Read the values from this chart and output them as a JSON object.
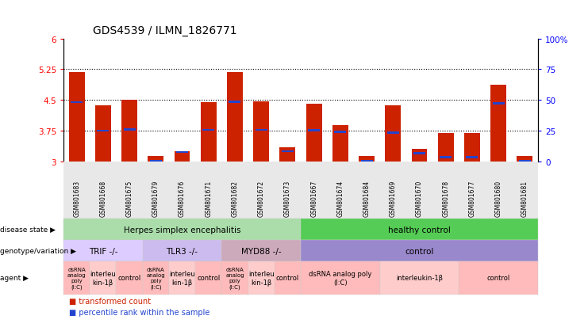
{
  "title": "GDS4539 / ILMN_1826771",
  "samples": [
    "GSM801683",
    "GSM801668",
    "GSM801675",
    "GSM801679",
    "GSM801676",
    "GSM801671",
    "GSM801682",
    "GSM801672",
    "GSM801673",
    "GSM801667",
    "GSM801674",
    "GSM801684",
    "GSM801669",
    "GSM801670",
    "GSM801678",
    "GSM801677",
    "GSM801680",
    "GSM801681"
  ],
  "bar_values": [
    5.18,
    4.38,
    4.5,
    3.13,
    3.25,
    4.44,
    5.18,
    4.47,
    3.35,
    4.4,
    3.88,
    3.13,
    4.38,
    3.3,
    3.7,
    3.7,
    4.88,
    3.13
  ],
  "blue_values": [
    4.45,
    3.75,
    3.78,
    3.02,
    3.23,
    3.77,
    4.46,
    3.77,
    3.25,
    3.76,
    3.72,
    3.02,
    3.7,
    3.2,
    3.1,
    3.1,
    4.42,
    3.02
  ],
  "ylim_left": [
    3.0,
    6.0
  ],
  "yticks_left": [
    3.0,
    3.75,
    4.5,
    5.25,
    6.0
  ],
  "ytick_labels_left": [
    "3",
    "3.75",
    "4.5",
    "5.25",
    "6"
  ],
  "yticks_right": [
    0,
    25,
    50,
    75,
    100
  ],
  "ytick_labels_right": [
    "0",
    "25",
    "50",
    "75",
    "100%"
  ],
  "hlines": [
    3.75,
    4.5,
    5.25
  ],
  "bar_color": "#cc2200",
  "blue_color": "#2244cc",
  "bar_width": 0.6,
  "disease_state_regions": [
    {
      "label": "Herpes simplex encephalitis",
      "start": 0,
      "end": 9,
      "color": "#aaddaa"
    },
    {
      "label": "healthy control",
      "start": 9,
      "end": 18,
      "color": "#55cc55"
    }
  ],
  "genotype_regions": [
    {
      "label": "TRIF -/-",
      "start": 0,
      "end": 3,
      "color": "#ddccff"
    },
    {
      "label": "TLR3 -/-",
      "start": 3,
      "end": 6,
      "color": "#ccbbee"
    },
    {
      "label": "MYD88 -/-",
      "start": 6,
      "end": 9,
      "color": "#ccaabb"
    },
    {
      "label": "control",
      "start": 9,
      "end": 18,
      "color": "#9988cc"
    }
  ],
  "agent_regions": [
    {
      "label": "dsRNA\nanalog\npoly\n(I:C)",
      "start": 0,
      "end": 1,
      "color": "#ffbbbb"
    },
    {
      "label": "interleu\nkin-1β",
      "start": 1,
      "end": 2,
      "color": "#ffcccc"
    },
    {
      "label": "control",
      "start": 2,
      "end": 3,
      "color": "#ffbbbb"
    },
    {
      "label": "dsRNA\nanalog\npoly\n(I:C)",
      "start": 3,
      "end": 4,
      "color": "#ffbbbb"
    },
    {
      "label": "interleu\nkin-1β",
      "start": 4,
      "end": 5,
      "color": "#ffcccc"
    },
    {
      "label": "control",
      "start": 5,
      "end": 6,
      "color": "#ffbbbb"
    },
    {
      "label": "dsRNA\nanalog\npoly\n(I:C)",
      "start": 6,
      "end": 7,
      "color": "#ffbbbb"
    },
    {
      "label": "interleu\nkin-1β",
      "start": 7,
      "end": 8,
      "color": "#ffcccc"
    },
    {
      "label": "control",
      "start": 8,
      "end": 9,
      "color": "#ffbbbb"
    },
    {
      "label": "dsRNA analog poly\n(I:C)",
      "start": 9,
      "end": 12,
      "color": "#ffbbbb"
    },
    {
      "label": "interleukin-1β",
      "start": 12,
      "end": 15,
      "color": "#ffcccc"
    },
    {
      "label": "control",
      "start": 15,
      "end": 18,
      "color": "#ffbbbb"
    }
  ],
  "row_labels": [
    "disease state",
    "genotype/variation",
    "agent"
  ],
  "legend_items": [
    {
      "label": "transformed count",
      "color": "#cc2200"
    },
    {
      "label": "percentile rank within the sample",
      "color": "#2244cc"
    }
  ]
}
